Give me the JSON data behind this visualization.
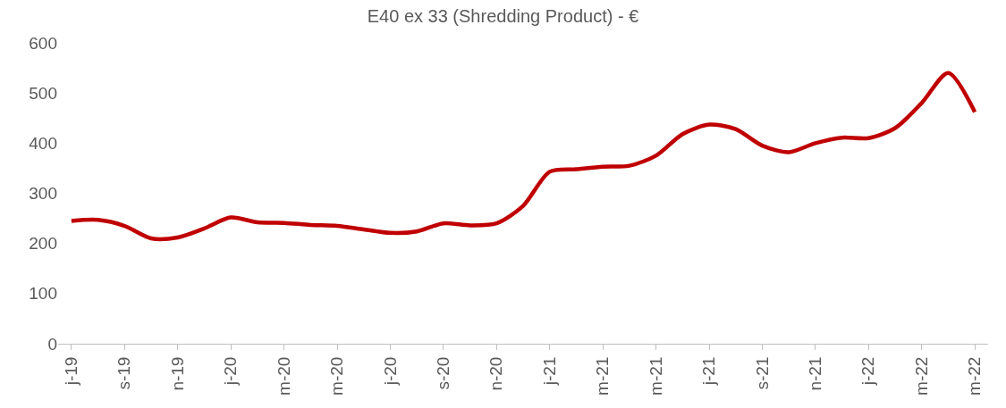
{
  "chart_data": {
    "type": "line",
    "title": "E40 ex 33 (Shredding Product) - €",
    "categories": [
      "j-19",
      null,
      "s-19",
      null,
      "n-19",
      null,
      "j-20",
      null,
      "m-20",
      null,
      "m-20",
      null,
      "j-20",
      null,
      "s-20",
      null,
      "n-20",
      null,
      "j-21",
      null,
      "m-21",
      null,
      "m-21",
      null,
      "j-21",
      null,
      "s-21",
      null,
      "n-21",
      null,
      "j-22",
      null,
      "m-22",
      null,
      "m-22"
    ],
    "series": [
      {
        "color": "#c00000",
        "values": [
          245,
          247,
          235,
          210,
          212,
          230,
          252,
          242,
          241,
          237,
          235,
          228,
          221,
          224,
          240,
          236,
          240,
          275,
          343,
          348,
          353,
          355,
          375,
          418,
          437,
          428,
          395,
          382,
          400,
          411,
          410,
          430,
          480,
          540,
          462
        ]
      }
    ],
    "ylim": [
      0,
      600
    ],
    "yticks": [
      0,
      100,
      200,
      300,
      400,
      500,
      600
    ],
    "grid": false,
    "marker": "none",
    "line_style": "solid"
  }
}
